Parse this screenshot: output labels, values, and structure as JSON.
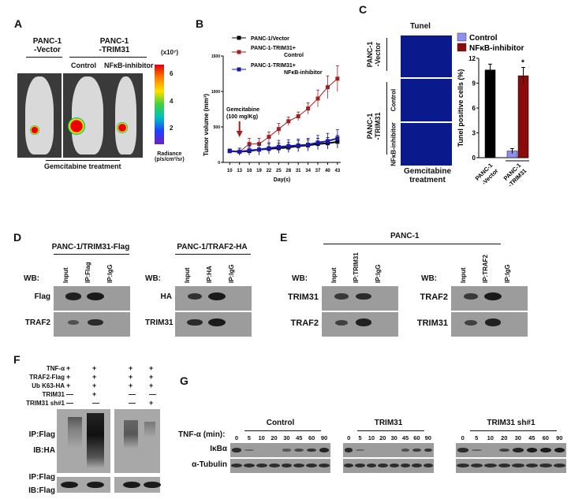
{
  "panels": {
    "A": "A",
    "B": "B",
    "C": "C",
    "D": "D",
    "E": "E",
    "F": "F",
    "G": "G"
  },
  "panel_a": {
    "group1": [
      "PANC-1",
      "-Vector"
    ],
    "group2": [
      "PANC-1",
      "-TRIM31"
    ],
    "sub_control": "Control",
    "sub_inhibitor": "NFκB-inhibitor",
    "footer": "Gemcitabine treatment",
    "scale_unit": "(x10⁷)",
    "scale_ticks": [
      "6",
      "4",
      "2"
    ],
    "scale_label": [
      "Radiance",
      "(p/s/cm²/sr)"
    ]
  },
  "chart_data": [
    {
      "type": "line",
      "title": "",
      "xlabel": "Day(s)",
      "ylabel": "Tumor volume (mm³)",
      "x": [
        10,
        13,
        16,
        19,
        22,
        25,
        28,
        31,
        34,
        37,
        40,
        43
      ],
      "xlim": [
        8,
        44
      ],
      "ylim": [
        0,
        1500
      ],
      "yticks": [
        0,
        500,
        1000,
        1500
      ],
      "annotation": [
        "Gemcitabine",
        "(100 mg/Kg)"
      ],
      "annotation_x": 13,
      "legend_position": "top-left",
      "series": [
        {
          "name": "PANC-1/Vector",
          "color": "#000000",
          "values": [
            160,
            150,
            160,
            180,
            190,
            200,
            210,
            230,
            240,
            260,
            270,
            290
          ],
          "err": [
            30,
            50,
            60,
            70,
            70,
            70,
            70,
            80,
            80,
            80,
            80,
            90
          ]
        },
        {
          "name": "PANC-1-TRIM31+ Control",
          "label": [
            "PANC-1-TRIM31+",
            "Control"
          ],
          "color": "#a31f1f",
          "values": [
            160,
            150,
            260,
            260,
            360,
            470,
            580,
            650,
            760,
            900,
            1060,
            1180
          ],
          "err": [
            30,
            50,
            80,
            80,
            70,
            80,
            60,
            60,
            80,
            120,
            160,
            180
          ]
        },
        {
          "name": "PANC-1-TRIM31+ NFκB-inhibitor",
          "label": [
            "PANC-1-TRIM31+",
            "NFκB-inhibitor"
          ],
          "color": "#1a1aa8",
          "values": [
            160,
            150,
            170,
            180,
            200,
            220,
            230,
            240,
            250,
            280,
            300,
            340
          ],
          "err": [
            30,
            50,
            70,
            80,
            80,
            90,
            90,
            90,
            90,
            100,
            110,
            120
          ]
        }
      ]
    },
    {
      "type": "bar",
      "title": "Tunel",
      "ylabel": "Tunel positive cells (%)",
      "ylim": [
        0,
        12
      ],
      "yticks": [
        0,
        3,
        6,
        9,
        12
      ],
      "categories": [
        "PANC-1 -Vector",
        "PANC-1 -TRIM31"
      ],
      "series": [
        {
          "name": "Control",
          "color": "#8f8fef",
          "values": [
            10.6,
            0.8
          ],
          "err": [
            0.7,
            0.3
          ]
        },
        {
          "name": "NFκB-inhibitor",
          "color": "#8b0a0a",
          "values": [
            null,
            9.9
          ],
          "err": [
            null,
            1.0
          ]
        }
      ],
      "significance": "*",
      "legend_position": "top"
    }
  ],
  "panel_c": {
    "row_vector": [
      "PANC-1",
      "-Vector"
    ],
    "row_trim": [
      "PANC-1",
      "-TRIM31"
    ],
    "sub_control": "Control",
    "sub_inhibitor": "NFκB-inhibitor",
    "footer": [
      "Gemcitabine",
      "treatment"
    ],
    "cat1": [
      "PANC-1",
      "-Vector"
    ],
    "cat2": [
      "PANC-1",
      "-TRIM31"
    ]
  },
  "panel_d": {
    "blot1": {
      "title": "PANC-1/TRIM31-Flag",
      "wb": "WB:",
      "lanes": [
        "Input",
        "IP:Flag",
        "IP:IgG"
      ],
      "rows": [
        "Flag",
        "TRAF2"
      ]
    },
    "blot2": {
      "title": "PANC-1/TRAF2-HA",
      "wb": "WB:",
      "lanes": [
        "Input",
        "IP:HA",
        "IP:IgG"
      ],
      "rows": [
        "HA",
        "TRIM31"
      ]
    }
  },
  "panel_e": {
    "title": "PANC-1",
    "blot1": {
      "wb": "WB:",
      "lanes": [
        "Input",
        "IP:TRIM31",
        "IP:IgG"
      ],
      "rows": [
        "TRIM31",
        "TRAF2"
      ]
    },
    "blot2": {
      "wb": "WB:",
      "lanes": [
        "Input",
        "IP:TRAF2",
        "IP:IgG"
      ],
      "rows": [
        "TRAF2",
        "TRIM31"
      ]
    }
  },
  "panel_f": {
    "conditions": [
      {
        "label": "TNF-α",
        "marks": [
          "+",
          "+",
          "+",
          "+"
        ]
      },
      {
        "label": "TRAF2-Flag",
        "marks": [
          "+",
          "+",
          "+",
          "+"
        ]
      },
      {
        "label": "Ub K63-HA",
        "marks": [
          "+",
          "+",
          "+",
          "+"
        ]
      },
      {
        "label": "TRIM31",
        "marks": [
          "—",
          "+",
          "—",
          "—"
        ]
      },
      {
        "label": "TRIM31 sh#1",
        "marks": [
          "—",
          "—",
          "—",
          "+"
        ]
      }
    ],
    "blot_labels": [
      "IP:Flag",
      "IB:HA",
      "IP:Flag",
      "IB:Flag"
    ]
  },
  "panel_g": {
    "tnf_label": "TNF-α (min):",
    "groups": [
      {
        "title": "Control",
        "times": [
          "0",
          "5",
          "10",
          "20",
          "30",
          "45",
          "60",
          "90"
        ],
        "ikba": [
          0.8,
          0.15,
          0,
          0,
          0.3,
          0.5,
          0.7,
          0.9
        ]
      },
      {
        "title": "TRIM31",
        "times": [
          "0",
          "5",
          "10",
          "20",
          "30",
          "45",
          "60",
          "90"
        ],
        "ikba": [
          0.8,
          0.15,
          0,
          0,
          0,
          0.4,
          0.6,
          0.7
        ]
      },
      {
        "title": "TRIM31 sh#1",
        "times": [
          "0",
          "5",
          "10",
          "20",
          "30",
          "45",
          "60",
          "90"
        ],
        "ikba": [
          0.8,
          0.2,
          0,
          0.6,
          0.9,
          1,
          1,
          1
        ]
      }
    ],
    "rows": [
      "IκBα",
      "α-Tubulin"
    ]
  }
}
